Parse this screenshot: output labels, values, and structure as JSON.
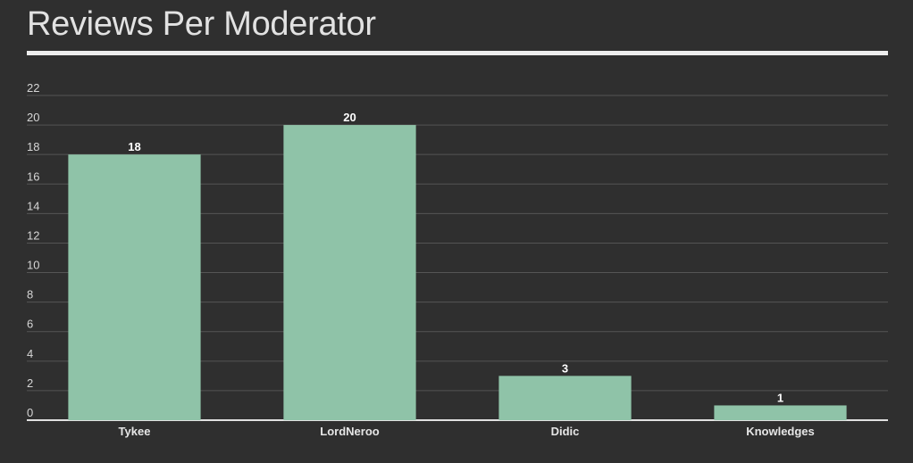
{
  "chart_data": {
    "type": "bar",
    "title": "Reviews Per Moderator",
    "categories": [
      "Tykee",
      "LordNeroo",
      "Didic",
      "Knowledges"
    ],
    "values": [
      18,
      20,
      3,
      1
    ],
    "data_labels": [
      "18",
      "20",
      "3",
      "1"
    ],
    "y_ticks": [
      0,
      2,
      4,
      6,
      8,
      10,
      12,
      14,
      16,
      18,
      20,
      22
    ],
    "ylim": [
      0,
      22
    ],
    "xlabel": "",
    "ylabel": "",
    "grid": true,
    "legend": "none",
    "colors": {
      "background": "#2f2f2f",
      "bar": "#8fc3a8",
      "grid": "#555555",
      "axis": "#e0e0e0",
      "text": "#d6d6d6"
    }
  }
}
